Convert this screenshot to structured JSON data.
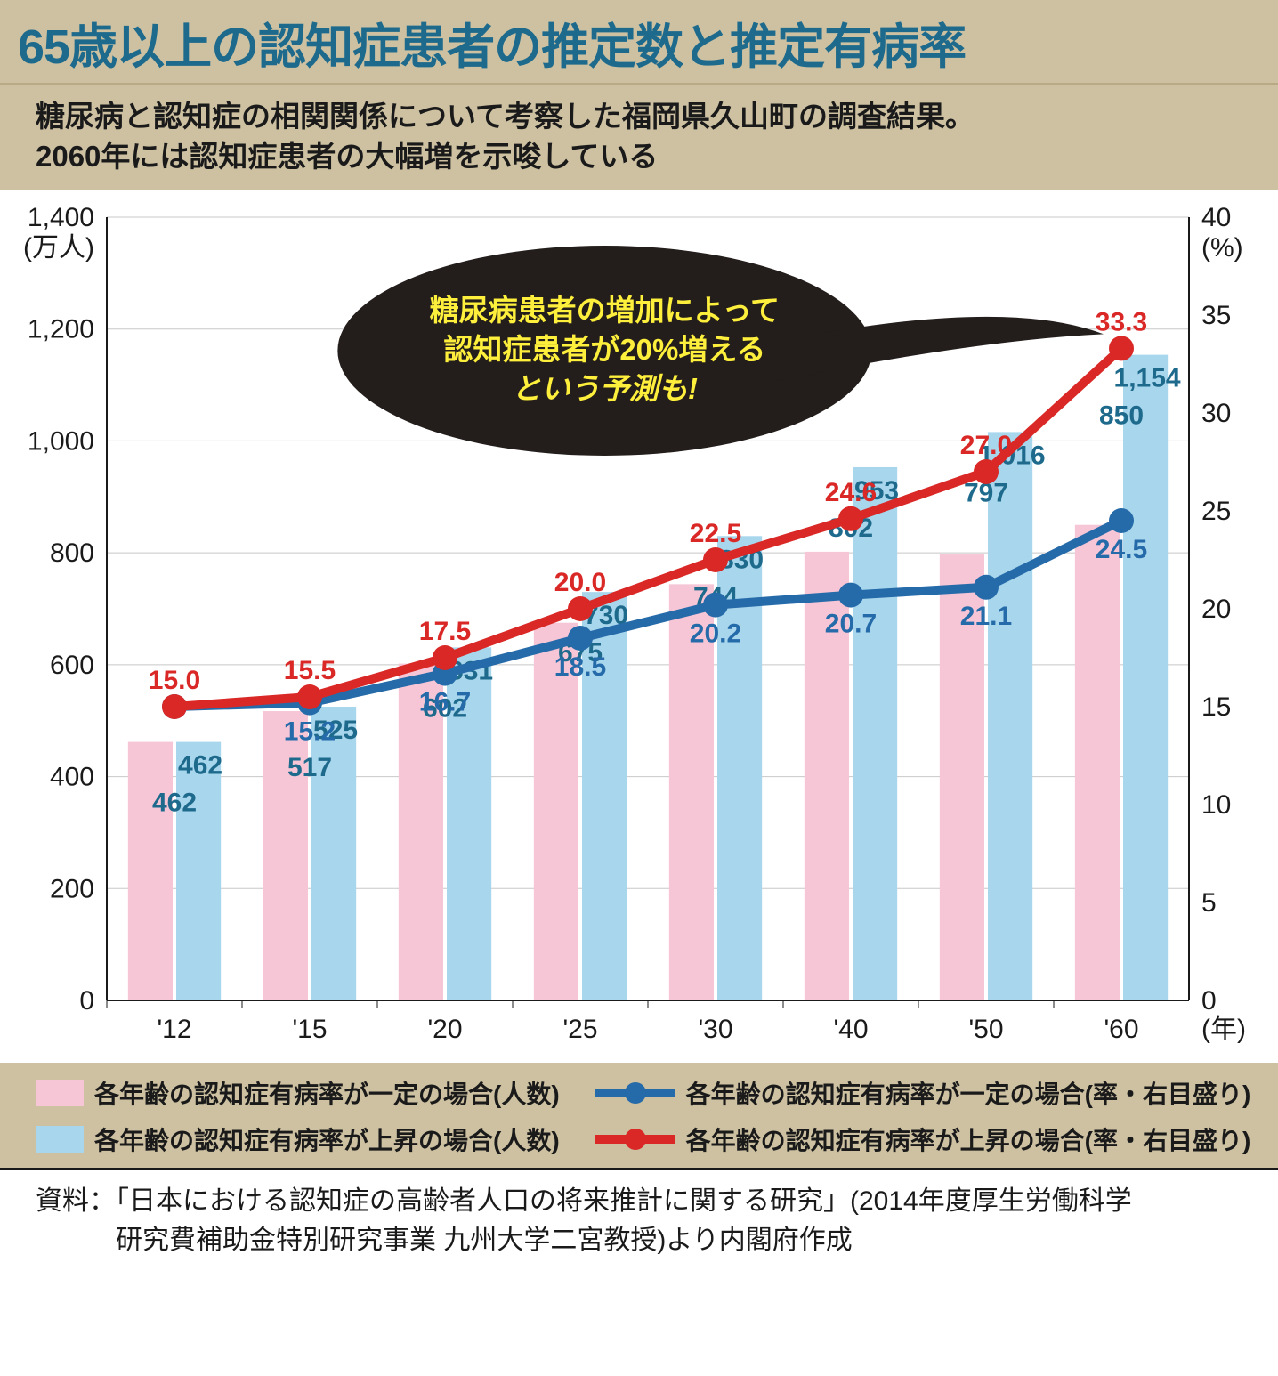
{
  "title": {
    "text": "65歳以上の認知症患者の推定数と推定有病率",
    "color": "#1e6a8c",
    "fontsize": 48
  },
  "subtitle": {
    "line1": "糖尿病と認知症の相関関係について考察した福岡県久山町の調査結果。",
    "line2": "2060年には認知症患者の大幅増を示唆している",
    "fontsize": 33
  },
  "callout": {
    "line1": "糖尿病患者の増加によって",
    "line2": "認知症患者が20%増える",
    "line3": "という予測も!",
    "bg": "#231d1b",
    "textColor": "#fdef3c",
    "fontsize": 33
  },
  "chart": {
    "type": "bar+line",
    "background_color": "#ffffff",
    "grid_color": "#c8c8c8",
    "axis_color": "#1a1a1a",
    "axis_fontsize": 30,
    "label_color": "#1a1a1a",
    "categories": [
      "'12",
      "'15",
      "'20",
      "'25",
      "'30",
      "'40",
      "'50",
      "'60"
    ],
    "x_suffix_label": "(年)",
    "y_left": {
      "max": 1400,
      "tick_step": 200,
      "unit_label": "(万人)",
      "ticks": [
        0,
        200,
        400,
        600,
        800,
        1000,
        1200,
        1400
      ],
      "tick_labels": [
        "0",
        "200",
        "400",
        "600",
        "800",
        "1,000",
        "1,200",
        "1,400"
      ]
    },
    "y_right": {
      "max": 40,
      "tick_step": 5,
      "unit_label": "(%)",
      "ticks": [
        0,
        5,
        10,
        15,
        20,
        25,
        30,
        35,
        40
      ],
      "tick_labels": [
        "0",
        "5",
        "10",
        "15",
        "20",
        "25",
        "30",
        "35",
        "40"
      ]
    },
    "bars": {
      "pink": {
        "color": "#f6c6d6",
        "values": [
          462,
          517,
          602,
          675,
          744,
          802,
          797,
          850
        ]
      },
      "blue": {
        "color": "#a8d6ec",
        "values": [
          462,
          525,
          631,
          730,
          830,
          953,
          1016,
          1154
        ]
      },
      "label_fontsize": 30,
      "label_color": "#1e6a8c",
      "bar_width_ratio": 0.33
    },
    "lines": {
      "blue": {
        "color": "#256aa9",
        "values": [
          15.0,
          15.2,
          16.7,
          18.5,
          20.2,
          20.7,
          21.1,
          24.5
        ],
        "stroke_width": 10,
        "marker_r": 14
      },
      "red": {
        "color": "#d92826",
        "values": [
          15.0,
          15.5,
          17.5,
          20.0,
          22.5,
          24.6,
          27.0,
          33.3
        ],
        "stroke_width": 10,
        "marker_r": 14
      },
      "label_fontsize": 30
    }
  },
  "legend": {
    "pink_label": "各年齢の認知症有病率が一定の場合(人数)",
    "lightblue_label": "各年齢の認知症有病率が上昇の場合(人数)",
    "blueline_label": "各年齢の認知症有病率が一定の場合(率・右目盛り)",
    "redline_label": "各年齢の認知症有病率が上昇の場合(率・右目盛り)",
    "fontsize": 28
  },
  "source": {
    "prefix": "資料：",
    "line1": "「日本における認知症の高齢者人口の将来推計に関する研究」(2014年度厚生労働科学",
    "line2": "研究費補助金特別研究事業 九州大学二宮教授)より内閣府作成"
  },
  "colors": {
    "beige": "#cdc1a2",
    "titleBlue": "#1e6a8c"
  }
}
